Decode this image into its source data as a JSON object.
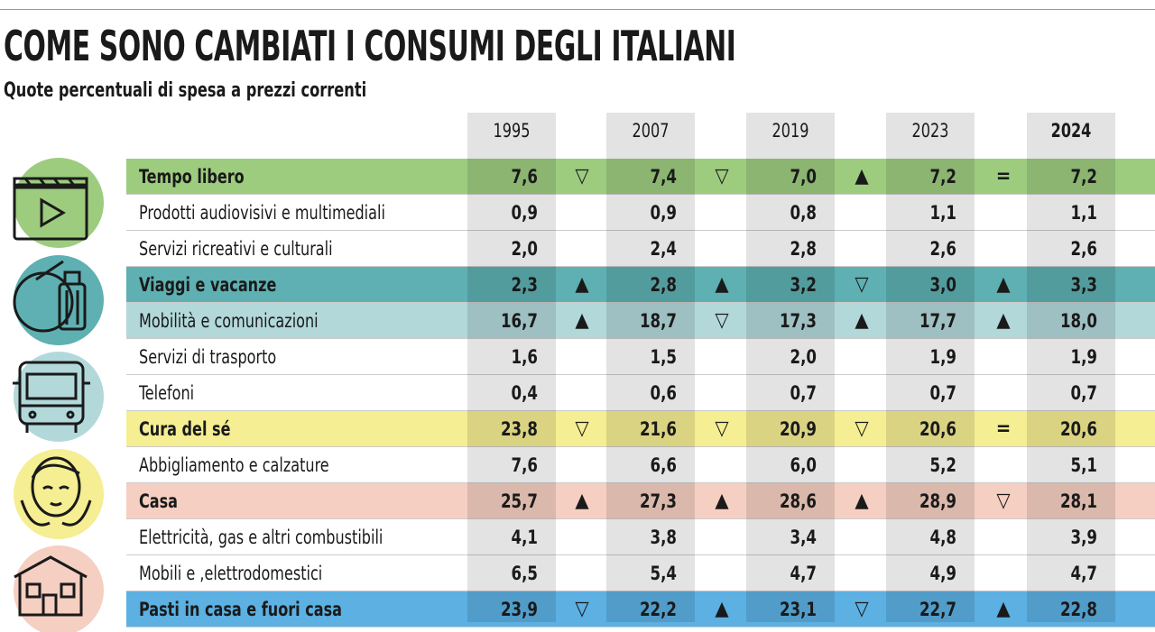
{
  "header": {
    "title": "COME SONO CAMBIATI I CONSUMI DEGLI ITALIANI",
    "subtitle": "Quote percentuali di spesa a prezzi correnti"
  },
  "table": {
    "columns": [
      "1995",
      "2007",
      "2019",
      "2023",
      "2024"
    ],
    "rows": [
      {
        "label": "Tempo libero",
        "bold": true,
        "color": "#9dcc7f",
        "values": [
          "7,6",
          "7,4",
          "7,0",
          "7,2",
          "7,2"
        ],
        "trends": [
          "▽",
          "▽",
          "▲",
          "="
        ]
      },
      {
        "label": "Prodotti audiovisivi e multimediali",
        "values": [
          "0,9",
          "0,9",
          "0,8",
          "1,1",
          "1,1"
        ]
      },
      {
        "label": "Servizi ricreativi e culturali",
        "values": [
          "2,0",
          "2,4",
          "2,8",
          "2,6",
          "2,6"
        ]
      },
      {
        "label": "Viaggi e vacanze",
        "bold": true,
        "color": "#5eb0b2",
        "values": [
          "2,3",
          "2,8",
          "3,2",
          "3,0",
          "3,3"
        ],
        "trends": [
          "▲",
          "▲",
          "▽",
          "▲"
        ]
      },
      {
        "label": "Mobilità e comunicazioni",
        "color": "#b2d8da",
        "values": [
          "16,7",
          "18,7",
          "17,3",
          "17,7",
          "18,0"
        ],
        "trends": [
          "▲",
          "▽",
          "▲",
          "▲"
        ]
      },
      {
        "label": "Servizi di trasporto",
        "values": [
          "1,6",
          "1,5",
          "2,0",
          "1,9",
          "1,9"
        ]
      },
      {
        "label": "Telefoni",
        "values": [
          "0,4",
          "0,6",
          "0,7",
          "0,7",
          "0,7"
        ]
      },
      {
        "label": "Cura del sé",
        "bold": true,
        "color": "#f5ee92",
        "values": [
          "23,8",
          "21,6",
          "20,9",
          "20,6",
          "20,6"
        ],
        "trends": [
          "▽",
          "▽",
          "▽",
          "="
        ]
      },
      {
        "label": "Abbigliamento e calzature",
        "values": [
          "7,6",
          "6,6",
          "6,0",
          "5,2",
          "5,1"
        ]
      },
      {
        "label": "Casa",
        "bold": true,
        "color": "#f5cfc1",
        "values": [
          "25,7",
          "27,3",
          "28,6",
          "28,9",
          "28,1"
        ],
        "trends": [
          "▲",
          "▲",
          "▲",
          "▽"
        ]
      },
      {
        "label": "Elettricità, gas e altri combustibili",
        "values": [
          "4,1",
          "3,8",
          "3,4",
          "4,8",
          "3,9"
        ]
      },
      {
        "label": "Mobili e ,elettrodomestici",
        "values": [
          "6,5",
          "5,4",
          "4,7",
          "4,9",
          "4,7"
        ]
      },
      {
        "label": "Pasti in casa e fuori casa",
        "bold": true,
        "color": "#5cb0e2",
        "values": [
          "23,9",
          "22,2",
          "23,1",
          "22,7",
          "22,8"
        ],
        "trends": [
          "▽",
          "▲",
          "▽",
          "▲"
        ]
      }
    ]
  }
}
